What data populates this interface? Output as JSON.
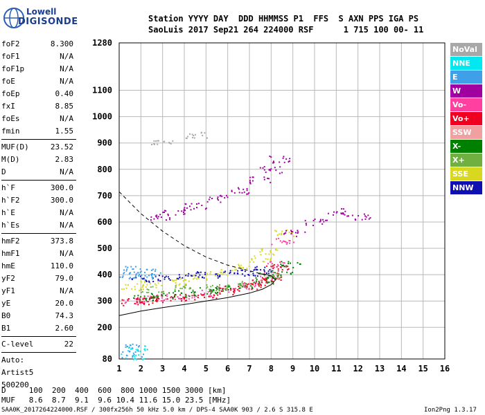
{
  "logo": {
    "line1": "Lowell",
    "line2": "DIGISONDE"
  },
  "header": {
    "line1": "Station YYYY DAY  DDD HHMMSS P1  FFS  S AXN PPS IGA PS",
    "line2": "SaoLuis 2017 Sep21 264 224000 RSF      1 715 100 00- 11"
  },
  "params": {
    "group1": [
      {
        "k": "foF2",
        "v": "8.300"
      },
      {
        "k": "foF1",
        "v": "N/A"
      },
      {
        "k": "foF1p",
        "v": "N/A"
      },
      {
        "k": "foE",
        "v": "N/A"
      },
      {
        "k": "foEp",
        "v": "0.40"
      },
      {
        "k": "fxI",
        "v": "8.85"
      },
      {
        "k": "foEs",
        "v": "N/A"
      },
      {
        "k": "fmin",
        "v": "1.55"
      }
    ],
    "group2": [
      {
        "k": "MUF(D)",
        "v": "23.52"
      },
      {
        "k": "M(D)",
        "v": "2.83"
      },
      {
        "k": "D",
        "v": "N/A"
      }
    ],
    "group3": [
      {
        "k": "h`F",
        "v": "300.0"
      },
      {
        "k": "h`F2",
        "v": "300.0"
      },
      {
        "k": "h`E",
        "v": "N/A"
      },
      {
        "k": "h`Es",
        "v": "N/A"
      }
    ],
    "group4": [
      {
        "k": "hmF2",
        "v": "373.8"
      },
      {
        "k": "hmF1",
        "v": "N/A"
      },
      {
        "k": "hmE",
        "v": "110.0"
      },
      {
        "k": "yF2",
        "v": "79.0"
      },
      {
        "k": "yF1",
        "v": "N/A"
      },
      {
        "k": "yE",
        "v": "20.0"
      },
      {
        "k": "B0",
        "v": "74.3"
      },
      {
        "k": "B1",
        "v": "2.60"
      }
    ],
    "clevel": {
      "k": "C-level",
      "v": "22"
    },
    "auto": [
      "Auto:",
      "Artist5",
      "500200"
    ]
  },
  "footer": {
    "dline": "D     100  200  400  600  800 1000 1500 3000 [km]",
    "mufline": "MUF   8.6  8.7  9.1  9.6 10.4 11.6 15.0 23.5 [MHz]",
    "info": "SAA0K_2017264224000.RSF / 300fx256h 50 kHz 5.0 km / DPS-4 SAA0K 903 / 2.6 S 315.8 E",
    "version": "Ion2Png 1.3.17"
  },
  "legend": [
    {
      "label": "NoVal",
      "color": "#a8a8a8"
    },
    {
      "label": "NNE",
      "color": "#00e8f0"
    },
    {
      "label": "E",
      "color": "#3fa0e8"
    },
    {
      "label": "W",
      "color": "#a000a0"
    },
    {
      "label": "Vo-",
      "color": "#ff40a0"
    },
    {
      "label": "Vo+",
      "color": "#f00020"
    },
    {
      "label": "SSW",
      "color": "#f0a0a0"
    },
    {
      "label": "X-",
      "color": "#008000"
    },
    {
      "label": "X+",
      "color": "#70b040"
    },
    {
      "label": "SSE",
      "color": "#d8d820"
    },
    {
      "label": "NNW",
      "color": "#1010b0"
    }
  ],
  "chart_data": {
    "type": "scatter",
    "title": "",
    "xlabel": "",
    "ylabel": "",
    "xlim": [
      1,
      16
    ],
    "ylim": [
      80,
      1280
    ],
    "x_ticks": [
      1,
      2,
      3,
      4,
      5,
      6,
      7,
      8,
      9,
      10,
      11,
      12,
      13,
      14,
      15,
      16
    ],
    "y_ticks": [
      80,
      200,
      300,
      400,
      500,
      600,
      700,
      800,
      900,
      1000,
      1100,
      1280
    ],
    "y_tick_labels": [
      "80",
      "200",
      "300",
      "400",
      "500",
      "600",
      "700",
      "800",
      "900",
      "1000",
      "1100",
      "1280"
    ],
    "grid": true,
    "legend_position": "right",
    "profile_curve": [
      [
        1.0,
        245
      ],
      [
        2,
        262
      ],
      [
        3,
        275
      ],
      [
        4,
        287
      ],
      [
        5,
        300
      ],
      [
        6,
        313
      ],
      [
        7,
        330
      ],
      [
        7.6,
        345
      ],
      [
        8.0,
        362
      ],
      [
        8.2,
        380
      ],
      [
        8.0,
        396
      ],
      [
        7.7,
        402
      ],
      [
        7.4,
        404
      ]
    ],
    "dashed_curve": [
      [
        1.0,
        715
      ],
      [
        2,
        632
      ],
      [
        3,
        565
      ],
      [
        4,
        510
      ],
      [
        5,
        467
      ],
      [
        6,
        436
      ],
      [
        7,
        415
      ],
      [
        7.6,
        402
      ],
      [
        8.0,
        396
      ]
    ],
    "series": [
      {
        "name": "Vo-",
        "color": "#ff40a0",
        "x": [
          1.6,
          2.2,
          3.0,
          4.0,
          5.0,
          6.0,
          7.0,
          7.6,
          8.0,
          8.3,
          8.5
        ],
        "y": [
          305,
          310,
          315,
          320,
          330,
          345,
          362,
          378,
          400,
          440,
          530
        ]
      },
      {
        "name": "Vo+",
        "color": "#f00020",
        "x": [
          1.6,
          2.2,
          3.0,
          4.0,
          5.0,
          6.0,
          7.0,
          7.6,
          8.0,
          8.3
        ],
        "y": [
          298,
          302,
          308,
          315,
          325,
          338,
          355,
          372,
          395,
          430
        ]
      },
      {
        "name": "X-",
        "color": "#008000",
        "x": [
          2.0,
          3.0,
          4.0,
          5.0,
          6.0,
          7.0,
          7.8,
          8.5,
          8.8
        ],
        "y": [
          318,
          322,
          330,
          340,
          350,
          362,
          380,
          405,
          440
        ]
      },
      {
        "name": "SSE",
        "color": "#d8d820",
        "x": [
          1.6,
          2.5,
          3.5,
          4.5,
          5.5,
          6.5,
          7.5,
          8.0,
          8.5
        ],
        "y": [
          355,
          365,
          375,
          390,
          410,
          430,
          460,
          490,
          560
        ]
      },
      {
        "name": "W",
        "color": "#a000a0",
        "x": [
          2.8,
          3.5,
          4.5,
          5.5,
          6.5,
          7.5,
          8.0,
          8.3,
          9.0,
          10.0,
          11.0,
          12.0
        ],
        "y": [
          620,
          640,
          660,
          690,
          720,
          760,
          800,
          840,
          560,
          600,
          640,
          620
        ]
      },
      {
        "name": "NNW",
        "color": "#1010b0",
        "x": [
          2.0,
          3.0,
          4.0,
          5.0,
          6.0,
          7.0,
          7.5
        ],
        "y": [
          385,
          390,
          395,
          400,
          405,
          410,
          420
        ]
      },
      {
        "name": "E",
        "color": "#3fa0e8",
        "x": [
          1.5,
          1.7,
          2.0,
          2.4,
          1.6,
          1.8
        ],
        "y": [
          400,
          420,
          395,
          410,
          100,
          130
        ]
      },
      {
        "name": "NNE",
        "color": "#00e8f0",
        "x": [
          1.6,
          1.8
        ],
        "y": [
          90,
          120
        ]
      },
      {
        "name": "X+",
        "color": "#70b040",
        "x": [
          2.5,
          4.0,
          5.5,
          7.0,
          8.0
        ],
        "y": [
          345,
          350,
          355,
          370,
          400
        ]
      },
      {
        "name": "NoVal",
        "color": "#a8a8a8",
        "x": [
          3.0,
          4.5
        ],
        "y": [
          900,
          930
        ]
      }
    ]
  }
}
